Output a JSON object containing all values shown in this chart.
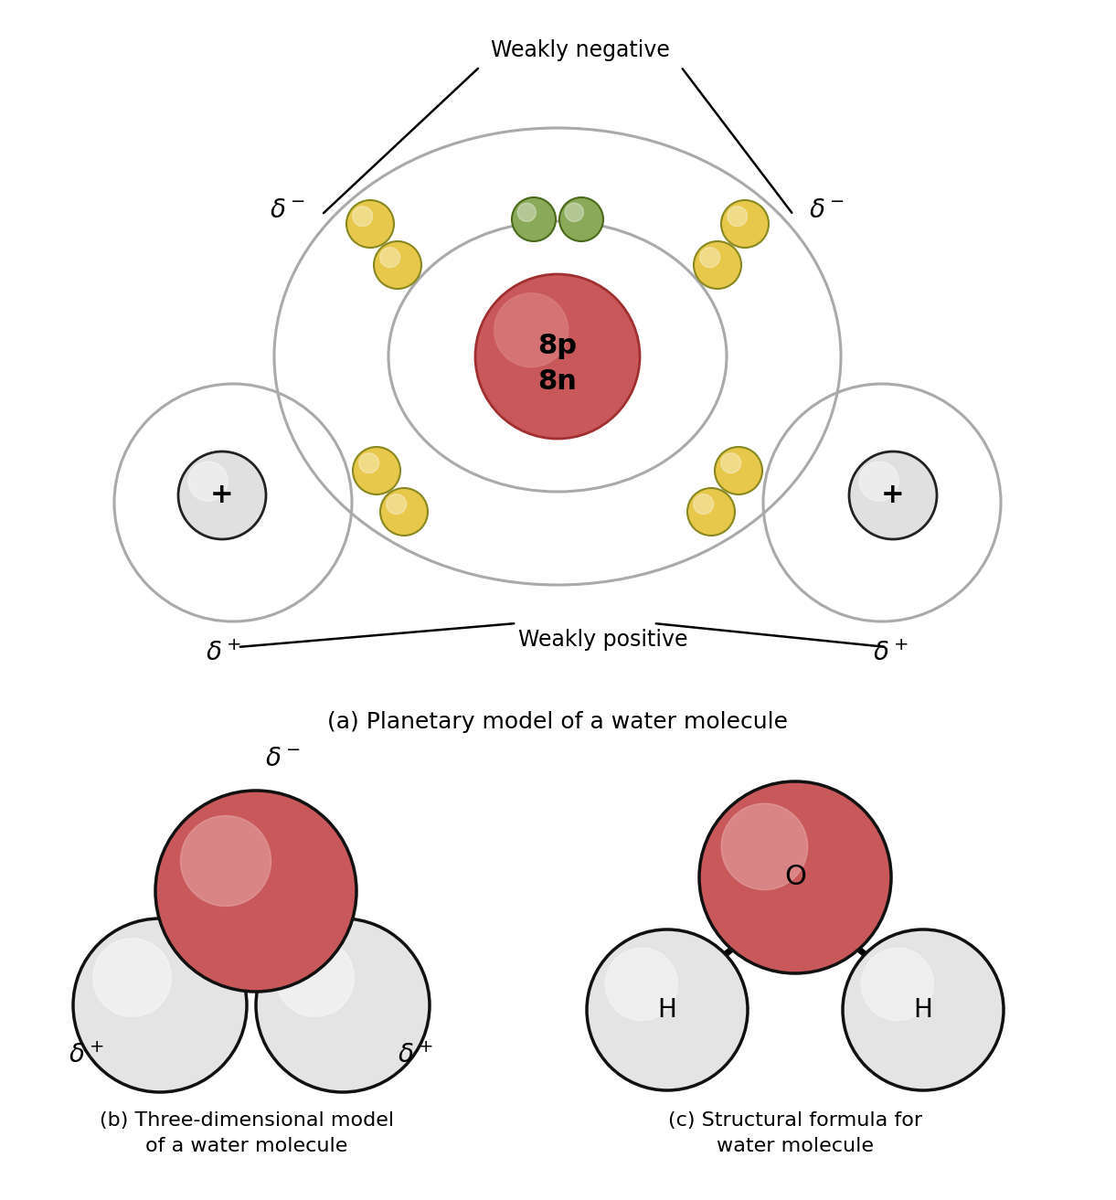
{
  "bg_color": "#ffffff",
  "nucleus_color": "#c8585a",
  "nucleus_highlight": "#e08888",
  "nucleus_edge": "#a03030",
  "electron_color": "#e8c84a",
  "electron_edge": "#888820",
  "lone_pair_color": "#8aaa5a",
  "lone_pair_edge": "#4a6a1a",
  "hydrogen_color": "#e0e0e0",
  "hydrogen_edge": "#222222",
  "oxygen_3d_color_face": "#c8585a",
  "oxygen_3d_color_hi": "#e8aaaa",
  "oxygen_3d_edge": "#111111",
  "hydrogen_3d_color_face": "#e4e4e4",
  "hydrogen_3d_color_hi": "#f8f8f8",
  "hydrogen_3d_edge": "#111111",
  "orbit_color": "#aaaaaa",
  "orbit_lw": 2.2,
  "annotation_color": "#000000",
  "label_color": "#000000",
  "title_color": "#000000",
  "weakly_neg_label": "Weakly negative",
  "weakly_pos_label": "Weakly positive",
  "caption_a": "(a) Planetary model of a water molecule",
  "caption_b": "(b) Three-dimensional model\nof a water molecule",
  "caption_c": "(c) Structural formula for\nwater molecule",
  "nucleus_text": "8p\n8n",
  "plus_sign": "+",
  "oxygen_label": "O",
  "hydrogen_label": "H"
}
